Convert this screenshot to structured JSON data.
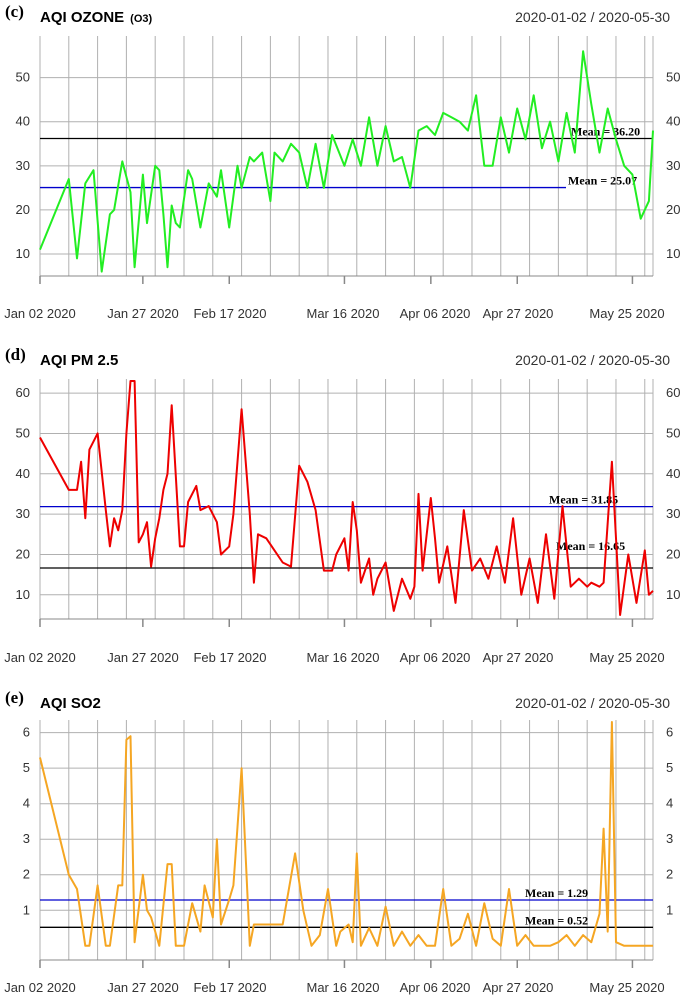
{
  "chart_data": [
    {
      "type": "line",
      "panel": "(c)",
      "title": "AQI OZONE",
      "subtitle": "(O3)",
      "date_range": "2020-01-02 / 2020-05-30",
      "x_ticks": [
        "Jan 02 2020",
        "Jan 27 2020",
        "Feb 17 2020",
        "Mar 16 2020",
        "Apr 06 2020",
        "Apr 27 2020",
        "May 25 2020"
      ],
      "y_ticks": [
        10,
        20,
        30,
        40,
        50
      ],
      "ylim": [
        5,
        59
      ],
      "color": "#22ee22",
      "series_x": [
        "2020-01-02",
        "2020-01-09",
        "2020-01-11",
        "2020-01-13",
        "2020-01-15",
        "2020-01-17",
        "2020-01-19",
        "2020-01-20",
        "2020-01-22",
        "2020-01-24",
        "2020-01-25",
        "2020-01-27",
        "2020-01-28",
        "2020-01-30",
        "2020-01-31",
        "2020-02-01",
        "2020-02-02",
        "2020-02-03",
        "2020-02-04",
        "2020-02-05",
        "2020-02-07",
        "2020-02-08",
        "2020-02-10",
        "2020-02-12",
        "2020-02-14",
        "2020-02-15",
        "2020-02-17",
        "2020-02-19",
        "2020-02-20",
        "2020-02-22",
        "2020-02-23",
        "2020-02-25",
        "2020-02-27",
        "2020-02-28",
        "2020-03-01",
        "2020-03-03",
        "2020-03-05",
        "2020-03-07",
        "2020-03-09",
        "2020-03-11",
        "2020-03-13",
        "2020-03-16",
        "2020-03-18",
        "2020-03-20",
        "2020-03-22",
        "2020-03-24",
        "2020-03-26",
        "2020-03-28",
        "2020-03-30",
        "2020-04-01",
        "2020-04-03",
        "2020-04-05",
        "2020-04-07",
        "2020-04-09",
        "2020-04-11",
        "2020-04-13",
        "2020-04-15",
        "2020-04-17",
        "2020-04-19",
        "2020-04-21",
        "2020-04-23",
        "2020-04-25",
        "2020-04-27",
        "2020-04-29",
        "2020-05-01",
        "2020-05-03",
        "2020-05-05",
        "2020-05-07",
        "2020-05-09",
        "2020-05-11",
        "2020-05-13",
        "2020-05-15",
        "2020-05-17",
        "2020-05-19",
        "2020-05-21",
        "2020-05-23",
        "2020-05-25",
        "2020-05-27",
        "2020-05-29",
        "2020-05-30"
      ],
      "series_y": [
        11,
        27,
        9,
        26,
        29,
        6,
        19,
        20,
        31,
        24,
        7,
        28,
        17,
        30,
        29,
        19,
        7,
        21,
        17,
        16,
        29,
        27,
        16,
        26,
        23,
        29,
        16,
        30,
        25,
        32,
        31,
        33,
        22,
        33,
        31,
        35,
        33,
        25,
        35,
        25,
        37,
        30,
        36,
        30,
        41,
        30,
        39,
        31,
        32,
        25,
        38,
        39,
        37,
        42,
        41,
        40,
        38,
        46,
        30,
        30,
        41,
        33,
        43,
        36,
        46,
        34,
        40,
        31,
        42,
        33,
        56,
        44,
        33,
        43,
        36,
        30,
        28,
        18,
        22,
        38
      ],
      "mean_lines": [
        {
          "label": "Mean = 36.20",
          "value": 36.2,
          "color": "#000000"
        },
        {
          "label": "Mean =  25.07",
          "value": 25.07,
          "color": "#0000cc"
        }
      ]
    },
    {
      "type": "line",
      "panel": "(d)",
      "title": "AQI PM 2.5",
      "subtitle": "",
      "date_range": "2020-01-02 / 2020-05-30",
      "x_ticks": [
        "Jan 02 2020",
        "Jan 27 2020",
        "Feb 17 2020",
        "Mar 16 2020",
        "Apr 06 2020",
        "Apr 27 2020",
        "May 25 2020"
      ],
      "y_ticks": [
        10,
        20,
        30,
        40,
        50,
        60
      ],
      "ylim": [
        4,
        63
      ],
      "color": "#ee0000",
      "series_x": [
        "2020-01-02",
        "2020-01-09",
        "2020-01-11",
        "2020-01-12",
        "2020-01-13",
        "2020-01-14",
        "2020-01-16",
        "2020-01-18",
        "2020-01-19",
        "2020-01-20",
        "2020-01-21",
        "2020-01-22",
        "2020-01-23",
        "2020-01-24",
        "2020-01-25",
        "2020-01-26",
        "2020-01-27",
        "2020-01-28",
        "2020-01-29",
        "2020-01-30",
        "2020-01-31",
        "2020-02-01",
        "2020-02-02",
        "2020-02-03",
        "2020-02-05",
        "2020-02-06",
        "2020-02-07",
        "2020-02-09",
        "2020-02-10",
        "2020-02-12",
        "2020-02-14",
        "2020-02-15",
        "2020-02-17",
        "2020-02-18",
        "2020-02-20",
        "2020-02-22",
        "2020-02-23",
        "2020-02-24",
        "2020-02-26",
        "2020-02-28",
        "2020-03-01",
        "2020-03-03",
        "2020-03-05",
        "2020-03-07",
        "2020-03-09",
        "2020-03-11",
        "2020-03-13",
        "2020-03-14",
        "2020-03-16",
        "2020-03-17",
        "2020-03-18",
        "2020-03-19",
        "2020-03-20",
        "2020-03-22",
        "2020-03-23",
        "2020-03-24",
        "2020-03-26",
        "2020-03-28",
        "2020-03-30",
        "2020-04-01",
        "2020-04-02",
        "2020-04-03",
        "2020-04-04",
        "2020-04-06",
        "2020-04-07",
        "2020-04-08",
        "2020-04-10",
        "2020-04-12",
        "2020-04-14",
        "2020-04-16",
        "2020-04-18",
        "2020-04-20",
        "2020-04-22",
        "2020-04-24",
        "2020-04-26",
        "2020-04-28",
        "2020-04-30",
        "2020-05-02",
        "2020-05-04",
        "2020-05-06",
        "2020-05-08",
        "2020-05-10",
        "2020-05-12",
        "2020-05-14",
        "2020-05-15",
        "2020-05-17",
        "2020-05-18",
        "2020-05-20",
        "2020-05-22",
        "2020-05-24",
        "2020-05-26",
        "2020-05-28",
        "2020-05-29",
        "2020-05-30"
      ],
      "series_y": [
        49,
        36,
        36,
        43,
        29,
        46,
        50,
        31,
        22,
        29,
        26,
        31,
        50,
        63,
        63,
        23,
        25,
        28,
        17,
        24,
        29,
        36,
        40,
        57,
        22,
        22,
        33,
        37,
        31,
        32,
        28,
        20,
        22,
        30,
        56,
        30,
        13,
        25,
        24,
        21,
        18,
        17,
        42,
        38,
        31,
        16,
        16,
        20,
        24,
        16,
        33,
        26,
        13,
        19,
        10,
        14,
        18,
        6,
        14,
        9,
        12,
        35,
        16,
        34,
        24,
        13,
        22,
        8,
        31,
        16,
        19,
        14,
        22,
        13,
        29,
        10,
        19,
        8,
        25,
        9,
        32,
        12,
        14,
        12,
        13,
        12,
        13,
        43,
        5,
        20,
        8,
        21,
        10,
        11
      ],
      "mean_lines": [
        {
          "label": "Mean = 31.85",
          "value": 31.85,
          "color": "#0000cc"
        },
        {
          "label": "Mean = 16.65",
          "value": 16.65,
          "color": "#000000"
        }
      ]
    },
    {
      "type": "line",
      "panel": "(e)",
      "title": "AQI SO2",
      "subtitle": "",
      "date_range": "2020-01-02 / 2020-05-30",
      "x_ticks": [
        "Jan 02 2020",
        "Jan 27 2020",
        "Feb 17 2020",
        "Mar 16 2020",
        "Apr 06 2020",
        "Apr 27 2020",
        "May 25 2020"
      ],
      "y_ticks": [
        1,
        2,
        3,
        4,
        5,
        6
      ],
      "ylim": [
        -0.4,
        6.3
      ],
      "color": "#f5a623",
      "series_x": [
        "2020-01-02",
        "2020-01-09",
        "2020-01-11",
        "2020-01-13",
        "2020-01-14",
        "2020-01-16",
        "2020-01-18",
        "2020-01-19",
        "2020-01-21",
        "2020-01-22",
        "2020-01-23",
        "2020-01-24",
        "2020-01-25",
        "2020-01-27",
        "2020-01-28",
        "2020-01-29",
        "2020-01-31",
        "2020-02-02",
        "2020-02-03",
        "2020-02-04",
        "2020-02-06",
        "2020-02-08",
        "2020-02-10",
        "2020-02-11",
        "2020-02-13",
        "2020-02-14",
        "2020-02-15",
        "2020-02-17",
        "2020-02-18",
        "2020-02-20",
        "2020-02-22",
        "2020-02-23",
        "2020-02-25",
        "2020-02-27",
        "2020-03-01",
        "2020-03-04",
        "2020-03-06",
        "2020-03-08",
        "2020-03-10",
        "2020-03-12",
        "2020-03-14",
        "2020-03-15",
        "2020-03-17",
        "2020-03-18",
        "2020-03-19",
        "2020-03-20",
        "2020-03-22",
        "2020-03-24",
        "2020-03-26",
        "2020-03-28",
        "2020-03-30",
        "2020-04-01",
        "2020-04-03",
        "2020-04-05",
        "2020-04-07",
        "2020-04-09",
        "2020-04-11",
        "2020-04-13",
        "2020-04-15",
        "2020-04-17",
        "2020-04-19",
        "2020-04-21",
        "2020-04-23",
        "2020-04-25",
        "2020-04-27",
        "2020-04-29",
        "2020-05-01",
        "2020-05-03",
        "2020-05-05",
        "2020-05-07",
        "2020-05-09",
        "2020-05-11",
        "2020-05-13",
        "2020-05-15",
        "2020-05-17",
        "2020-05-18",
        "2020-05-19",
        "2020-05-20",
        "2020-05-21",
        "2020-05-23",
        "2020-05-25",
        "2020-05-27",
        "2020-05-30"
      ],
      "series_y": [
        5.3,
        2.0,
        1.6,
        0,
        0,
        1.7,
        0,
        0,
        1.7,
        1.7,
        5.8,
        5.9,
        0.1,
        2.0,
        1.0,
        0.8,
        0,
        2.3,
        2.3,
        0,
        0,
        1.2,
        0.4,
        1.7,
        0.8,
        3.0,
        0.6,
        1.3,
        1.7,
        5.0,
        0,
        0.6,
        0.6,
        0.6,
        0.6,
        2.6,
        1.0,
        0,
        0.3,
        1.6,
        0,
        0.4,
        0.6,
        0.1,
        2.6,
        0,
        0.5,
        0,
        1.1,
        0,
        0.4,
        0,
        0.3,
        0,
        0,
        1.6,
        0,
        0.2,
        0.9,
        0,
        1.2,
        0.2,
        0,
        1.6,
        0,
        0.3,
        0,
        0,
        0,
        0.1,
        0.3,
        0,
        0.3,
        0.1,
        0.9,
        3.3,
        0.4,
        6.3,
        0.1,
        0,
        0,
        0,
        0
      ],
      "mean_lines": [
        {
          "label": "Mean = 1.29",
          "value": 1.29,
          "color": "#0000cc"
        },
        {
          "label": "Mean = 0.52",
          "value": 0.52,
          "color": "#000000"
        }
      ]
    }
  ]
}
